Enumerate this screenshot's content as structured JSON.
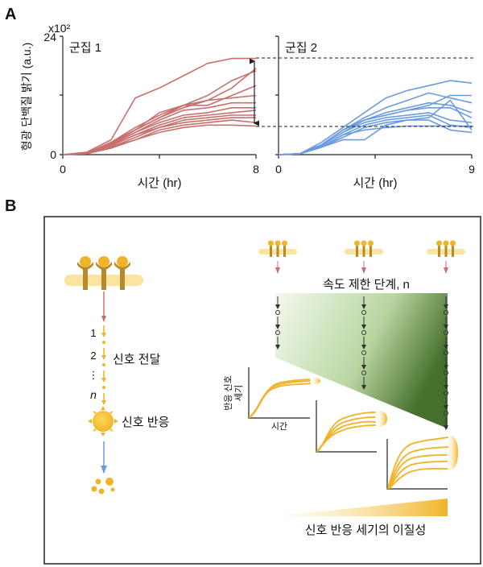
{
  "panel_a": {
    "label": "A",
    "ylabel": "형광 단백질 밝기 (a.u.)",
    "y_multiplier": "x10²",
    "colors": {
      "cluster1": "#c8706e",
      "cluster2": "#6b9be0"
    }
  },
  "chart_data": [
    {
      "type": "line",
      "title": "군집 1",
      "xlabel": "시간 (hr)",
      "ylabel": "형광 단백질 밝기 (a.u.)",
      "xlim": [
        0,
        8
      ],
      "ylim": [
        0,
        24
      ],
      "x_ticks": [
        "0",
        "8"
      ],
      "y_ticks": [
        "0",
        "24"
      ],
      "x": [
        0,
        1,
        2,
        3,
        4,
        5,
        6,
        7,
        8
      ],
      "series": [
        {
          "values": [
            0,
            0.5,
            3,
            11.5,
            13.5,
            16,
            18.5,
            19.5,
            19.5
          ]
        },
        {
          "values": [
            0,
            0.3,
            2.5,
            5,
            7.5,
            10,
            11,
            13.5,
            17.5
          ]
        },
        {
          "values": [
            0,
            0.3,
            2.5,
            5.5,
            8,
            10,
            12,
            15,
            17
          ]
        },
        {
          "values": [
            0,
            0.3,
            2,
            5,
            8.5,
            10,
            10,
            12,
            14
          ]
        },
        {
          "values": [
            0,
            0.3,
            2.2,
            5,
            7.5,
            9.5,
            11,
            11.5,
            12
          ]
        },
        {
          "values": [
            0,
            0.3,
            2,
            4.5,
            7,
            9,
            9.5,
            10.5,
            10.5
          ]
        },
        {
          "values": [
            0,
            0.3,
            2,
            4.5,
            6.5,
            8,
            8.5,
            9.5,
            9.5
          ]
        },
        {
          "values": [
            0,
            0.3,
            1.8,
            4,
            6,
            7.5,
            8,
            8.5,
            9
          ]
        },
        {
          "values": [
            0,
            0.3,
            1.8,
            4,
            5.5,
            7,
            7.5,
            8,
            8
          ]
        },
        {
          "values": [
            0,
            0.3,
            1.5,
            3.5,
            5.5,
            6.5,
            7,
            7.5,
            7.5
          ]
        },
        {
          "values": [
            0,
            0.2,
            1.5,
            3,
            5,
            6,
            6.5,
            7,
            6.5
          ]
        },
        {
          "values": [
            0,
            0.2,
            1.3,
            3,
            4.5,
            5.5,
            6,
            6,
            5.8
          ]
        }
      ]
    },
    {
      "type": "line",
      "title": "군집 2",
      "xlabel": "시간 (hr)",
      "xlim": [
        0,
        9
      ],
      "ylim": [
        0,
        24
      ],
      "x_ticks": [
        "0",
        "9"
      ],
      "x": [
        0,
        1,
        2,
        3,
        4,
        5,
        6,
        7,
        8,
        9
      ],
      "series": [
        {
          "values": [
            0,
            0.2,
            2.5,
            5.5,
            8.5,
            11.5,
            13,
            14,
            15,
            14.5
          ]
        },
        {
          "values": [
            0,
            0.2,
            2,
            5,
            7.5,
            9.5,
            11,
            12.5,
            11.5,
            10.5
          ]
        },
        {
          "values": [
            0,
            0.2,
            2,
            5,
            7,
            8.5,
            9.5,
            10.5,
            10,
            8.5
          ]
        },
        {
          "values": [
            0,
            0.2,
            2,
            5,
            7,
            8,
            9,
            10,
            12,
            12
          ]
        },
        {
          "values": [
            0,
            0.2,
            1.8,
            4.5,
            7,
            8,
            9,
            9.5,
            9.5,
            7.5
          ]
        },
        {
          "values": [
            0,
            0.2,
            1.8,
            4.5,
            6.5,
            7.5,
            8,
            8.5,
            7,
            6.5
          ]
        },
        {
          "values": [
            0,
            0.2,
            1.5,
            4,
            6,
            7,
            7.5,
            8,
            6,
            5.5
          ]
        },
        {
          "values": [
            0,
            0.2,
            1.5,
            3,
            3,
            6,
            7,
            7.5,
            11,
            5
          ]
        },
        {
          "values": [
            0,
            0.2,
            1.5,
            4,
            5,
            5.5,
            5.8,
            5.8,
            5.8,
            5.8
          ]
        },
        {
          "values": [
            0,
            0.2,
            1.5,
            3.5,
            5.5,
            6.5,
            7,
            7,
            5,
            4.5
          ]
        }
      ]
    }
  ],
  "panel_b": {
    "label": "B",
    "left": {
      "steps": [
        "1",
        "2",
        "⋮",
        "n"
      ],
      "transduction_label": "신호 전달",
      "response_label": "신호 반응"
    },
    "right": {
      "rate_limiting_label": "속도 제한 단계, n",
      "mini_ylabel_1": "반응 신호",
      "mini_ylabel_2": "세기",
      "mini_xlabel": "시간",
      "heterogeneity_label": "신호 반응 세기의 이질성"
    },
    "colors": {
      "receptor": "#b8892a",
      "receptor_head": "#f0b429",
      "membrane": "#fbe3a0",
      "green": "#4f7a33",
      "up_arrow": "#c8706e",
      "down_arrow": "#6b9be0"
    }
  }
}
